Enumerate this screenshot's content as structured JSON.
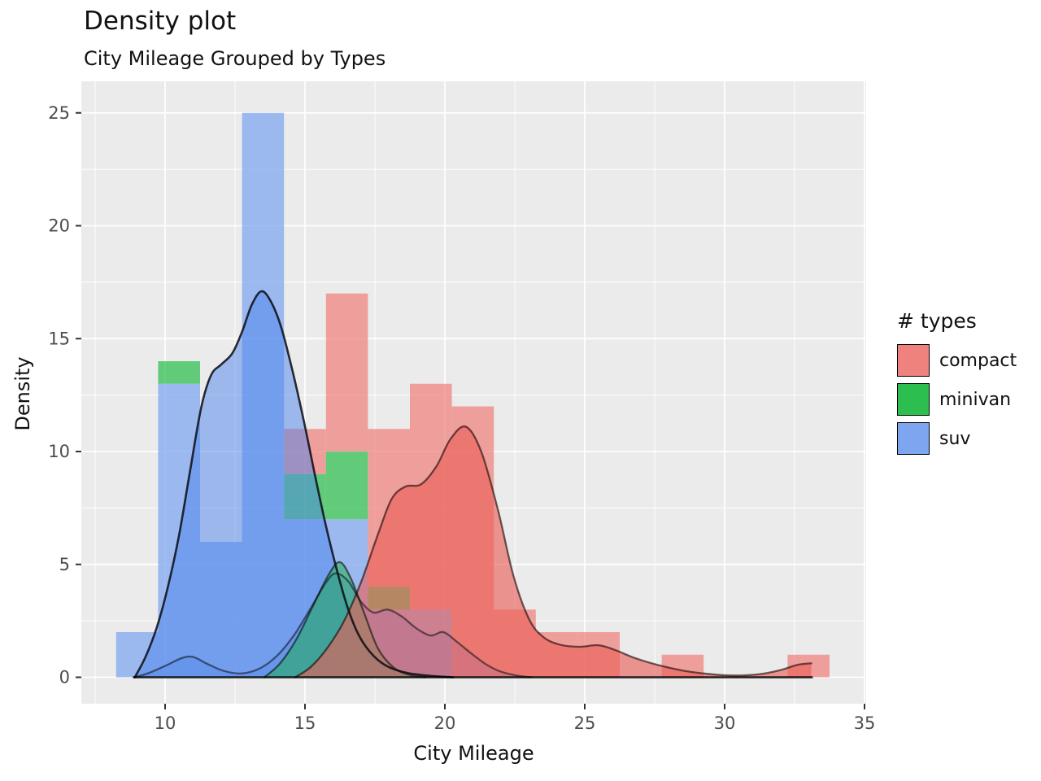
{
  "header": {
    "title": "Density plot",
    "subtitle": "City Mileage Grouped by Types"
  },
  "chart_data": {
    "type": "histogram+density",
    "title": "Density plot",
    "subtitle": "City Mileage Grouped by Types",
    "xlabel": "City Mileage",
    "ylabel": "Density",
    "legend_position": "right",
    "grid": "on",
    "x_ticks": [
      10,
      15,
      20,
      25,
      30,
      35
    ],
    "x_minor_ticks": [
      7.5,
      12.5,
      17.5,
      22.5,
      27.5,
      32.5
    ],
    "y_ticks": [
      0,
      5,
      10,
      15,
      20,
      25
    ],
    "y_minor_ticks": [
      2.5,
      7.5,
      12.5,
      17.5,
      22.5
    ],
    "xlim": [
      7.0,
      35.1
    ],
    "ylim": [
      -1.2,
      26.4
    ],
    "bin_width": 1.5,
    "stack_order": [
      "suv",
      "minivan",
      "compact"
    ],
    "histogram_bins": [
      {
        "bin_start": 8.25,
        "suv": 2,
        "minivan": 0,
        "compact": 0
      },
      {
        "bin_start": 9.75,
        "suv": 13,
        "minivan": 1,
        "compact": 0
      },
      {
        "bin_start": 11.25,
        "suv": 6,
        "minivan": 0,
        "compact": 0
      },
      {
        "bin_start": 12.75,
        "suv": 25,
        "minivan": 0,
        "compact": 0
      },
      {
        "bin_start": 14.25,
        "suv": 7,
        "minivan": 2,
        "compact": 2
      },
      {
        "bin_start": 15.75,
        "suv": 7,
        "minivan": 3,
        "compact": 7
      },
      {
        "bin_start": 17.25,
        "suv": 3,
        "minivan": 1,
        "compact": 7
      },
      {
        "bin_start": 18.75,
        "suv": 3,
        "minivan": 0,
        "compact": 10
      },
      {
        "bin_start": 20.25,
        "suv": 0,
        "minivan": 0,
        "compact": 12
      },
      {
        "bin_start": 21.75,
        "suv": 0,
        "minivan": 0,
        "compact": 3
      },
      {
        "bin_start": 23.25,
        "suv": 0,
        "minivan": 0,
        "compact": 2
      },
      {
        "bin_start": 24.75,
        "suv": 0,
        "minivan": 0,
        "compact": 2
      },
      {
        "bin_start": 26.25,
        "suv": 0,
        "minivan": 0,
        "compact": 0
      },
      {
        "bin_start": 27.75,
        "suv": 0,
        "minivan": 0,
        "compact": 1
      },
      {
        "bin_start": 29.25,
        "suv": 0,
        "minivan": 0,
        "compact": 0
      },
      {
        "bin_start": 30.75,
        "suv": 0,
        "minivan": 0,
        "compact": 0
      },
      {
        "bin_start": 32.25,
        "suv": 0,
        "minivan": 0,
        "compact": 1
      }
    ],
    "density_curves": [
      {
        "name": "suv",
        "variant": "main",
        "fill": "#4C84EC",
        "fill_opacity": 0.5,
        "stroke": "rgba(10,12,18,0.85)",
        "stroke_width": 2.6,
        "points": [
          [
            8.92,
            0
          ],
          [
            9.3,
            0.9
          ],
          [
            9.7,
            2.2
          ],
          [
            10.1,
            4.0
          ],
          [
            10.5,
            6.3
          ],
          [
            10.9,
            9.2
          ],
          [
            11.3,
            12.0
          ],
          [
            11.65,
            13.4
          ],
          [
            12.0,
            13.85
          ],
          [
            12.4,
            14.35
          ],
          [
            12.75,
            15.3
          ],
          [
            13.1,
            16.5
          ],
          [
            13.45,
            17.1
          ],
          [
            13.8,
            16.6
          ],
          [
            14.15,
            15.5
          ],
          [
            14.55,
            13.6
          ],
          [
            14.95,
            11.4
          ],
          [
            15.35,
            9.0
          ],
          [
            15.75,
            6.7
          ],
          [
            16.15,
            4.7
          ],
          [
            16.55,
            3.0
          ],
          [
            16.95,
            1.8
          ],
          [
            17.45,
            0.95
          ],
          [
            18.0,
            0.45
          ],
          [
            18.7,
            0.18
          ],
          [
            19.5,
            0.06
          ],
          [
            20.3,
            0
          ]
        ]
      },
      {
        "name": "suv",
        "variant": "smooth-bandwidth",
        "fill": "#4C84EC",
        "fill_opacity": 0.35,
        "stroke": "rgba(10,12,18,0.55)",
        "stroke_width": 2.3,
        "points": [
          [
            8.9,
            0
          ],
          [
            9.4,
            0.18
          ],
          [
            10.0,
            0.5
          ],
          [
            10.6,
            0.85
          ],
          [
            11.0,
            0.9
          ],
          [
            11.5,
            0.6
          ],
          [
            12.1,
            0.28
          ],
          [
            12.75,
            0.17
          ],
          [
            13.4,
            0.4
          ],
          [
            14.0,
            0.95
          ],
          [
            14.6,
            1.85
          ],
          [
            15.2,
            3.05
          ],
          [
            15.75,
            4.2
          ],
          [
            16.1,
            4.6
          ],
          [
            16.55,
            4.25
          ],
          [
            17.0,
            3.35
          ],
          [
            17.45,
            2.87
          ],
          [
            17.95,
            3.0
          ],
          [
            18.45,
            2.7
          ],
          [
            19.0,
            2.15
          ],
          [
            19.5,
            1.85
          ],
          [
            19.95,
            2.0
          ],
          [
            20.45,
            1.55
          ],
          [
            20.95,
            1.05
          ],
          [
            21.5,
            0.55
          ],
          [
            22.0,
            0.25
          ],
          [
            22.6,
            0.07
          ],
          [
            23.1,
            0
          ]
        ]
      },
      {
        "name": "minivan",
        "variant": "main",
        "fill": "#1CAF46",
        "fill_opacity": 0.5,
        "stroke": "rgba(10,15,10,0.60)",
        "stroke_width": 2.3,
        "points": [
          [
            13.55,
            0
          ],
          [
            14.1,
            0.6
          ],
          [
            14.7,
            1.7
          ],
          [
            15.3,
            3.2
          ],
          [
            15.85,
            4.55
          ],
          [
            16.25,
            5.1
          ],
          [
            16.65,
            4.35
          ],
          [
            17.1,
            2.9
          ],
          [
            17.6,
            1.3
          ],
          [
            18.15,
            0.45
          ],
          [
            18.7,
            0.12
          ],
          [
            19.3,
            0
          ]
        ]
      },
      {
        "name": "compact",
        "variant": "main",
        "fill": "#EA5D55",
        "fill_opacity": 0.62,
        "stroke": "rgba(25,8,8,0.62)",
        "stroke_width": 2.3,
        "points": [
          [
            14.65,
            0
          ],
          [
            15.2,
            0.45
          ],
          [
            15.8,
            1.3
          ],
          [
            16.4,
            2.5
          ],
          [
            17.0,
            4.2
          ],
          [
            17.6,
            6.3
          ],
          [
            18.1,
            7.9
          ],
          [
            18.6,
            8.45
          ],
          [
            19.15,
            8.55
          ],
          [
            19.7,
            9.35
          ],
          [
            20.2,
            10.55
          ],
          [
            20.75,
            11.1
          ],
          [
            21.3,
            10.0
          ],
          [
            21.9,
            7.4
          ],
          [
            22.45,
            4.5
          ],
          [
            23.0,
            2.6
          ],
          [
            23.5,
            1.8
          ],
          [
            24.1,
            1.45
          ],
          [
            24.8,
            1.35
          ],
          [
            25.5,
            1.42
          ],
          [
            26.1,
            1.2
          ],
          [
            26.8,
            0.85
          ],
          [
            27.6,
            0.55
          ],
          [
            28.5,
            0.3
          ],
          [
            29.4,
            0.15
          ],
          [
            30.3,
            0.08
          ],
          [
            31.2,
            0.13
          ],
          [
            32.0,
            0.32
          ],
          [
            32.6,
            0.55
          ],
          [
            33.1,
            0.62
          ]
        ]
      }
    ],
    "baseline": {
      "x_start": 8.85,
      "x_end": 33.15,
      "y": 0,
      "color": "rgba(0,0,0,0.85)",
      "width": 2.4
    },
    "legend": {
      "title": "# types",
      "entries": [
        {
          "label": "compact",
          "color": "#F0827D"
        },
        {
          "label": "minivan",
          "color": "#2DBE50"
        },
        {
          "label": "suv",
          "color": "#7DA5F0"
        }
      ]
    },
    "colors": {
      "panel_background": "#EBEBEB",
      "grid": "#FFFFFF",
      "tick_label": "#4D4D4D",
      "tick_mark": "#333333",
      "bar_opacity": 0.73,
      "bars": {
        "suv": "#7DA5F0",
        "minivan": "#2DBE50",
        "compact": "#F0827D"
      }
    }
  }
}
